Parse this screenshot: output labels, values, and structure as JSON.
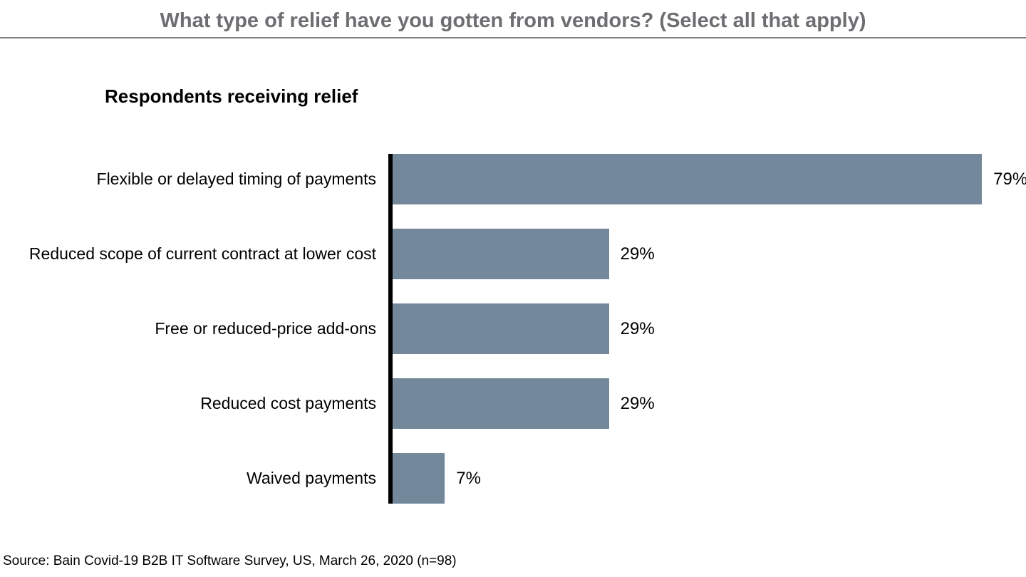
{
  "header": {
    "title": "What type of relief have you gotten from vendors? (Select all that apply)"
  },
  "chart": {
    "subtitle": "Respondents receiving relief"
  },
  "chart_data": {
    "type": "bar",
    "orientation": "horizontal",
    "title": "What type of relief have you gotten from vendors? (Select all that apply)",
    "ylabel": "Respondents receiving relief",
    "xlabel": "",
    "categories": [
      "Flexible or delayed timing of payments",
      "Reduced scope of current contract at lower cost",
      "Free or reduced-price add-ons",
      "Reduced cost payments",
      "Waived payments"
    ],
    "values": [
      79,
      29,
      29,
      29,
      7
    ],
    "value_labels": [
      "79%",
      "29%",
      "29%",
      "29%",
      "7%"
    ],
    "unit": "percent",
    "xlim": [
      0,
      100
    ],
    "grid": false,
    "legend": false,
    "bar_color": "#74889B",
    "axis_color": "#000000"
  },
  "colors": {
    "title_text": "#6d6e71",
    "title_rule": "#7f7f80",
    "bar": "#74889B",
    "axis": "#000000"
  },
  "footer": {
    "source": "Source: Bain Covid-19 B2B IT Software Survey, US, March 26, 2020 (n=98)"
  }
}
